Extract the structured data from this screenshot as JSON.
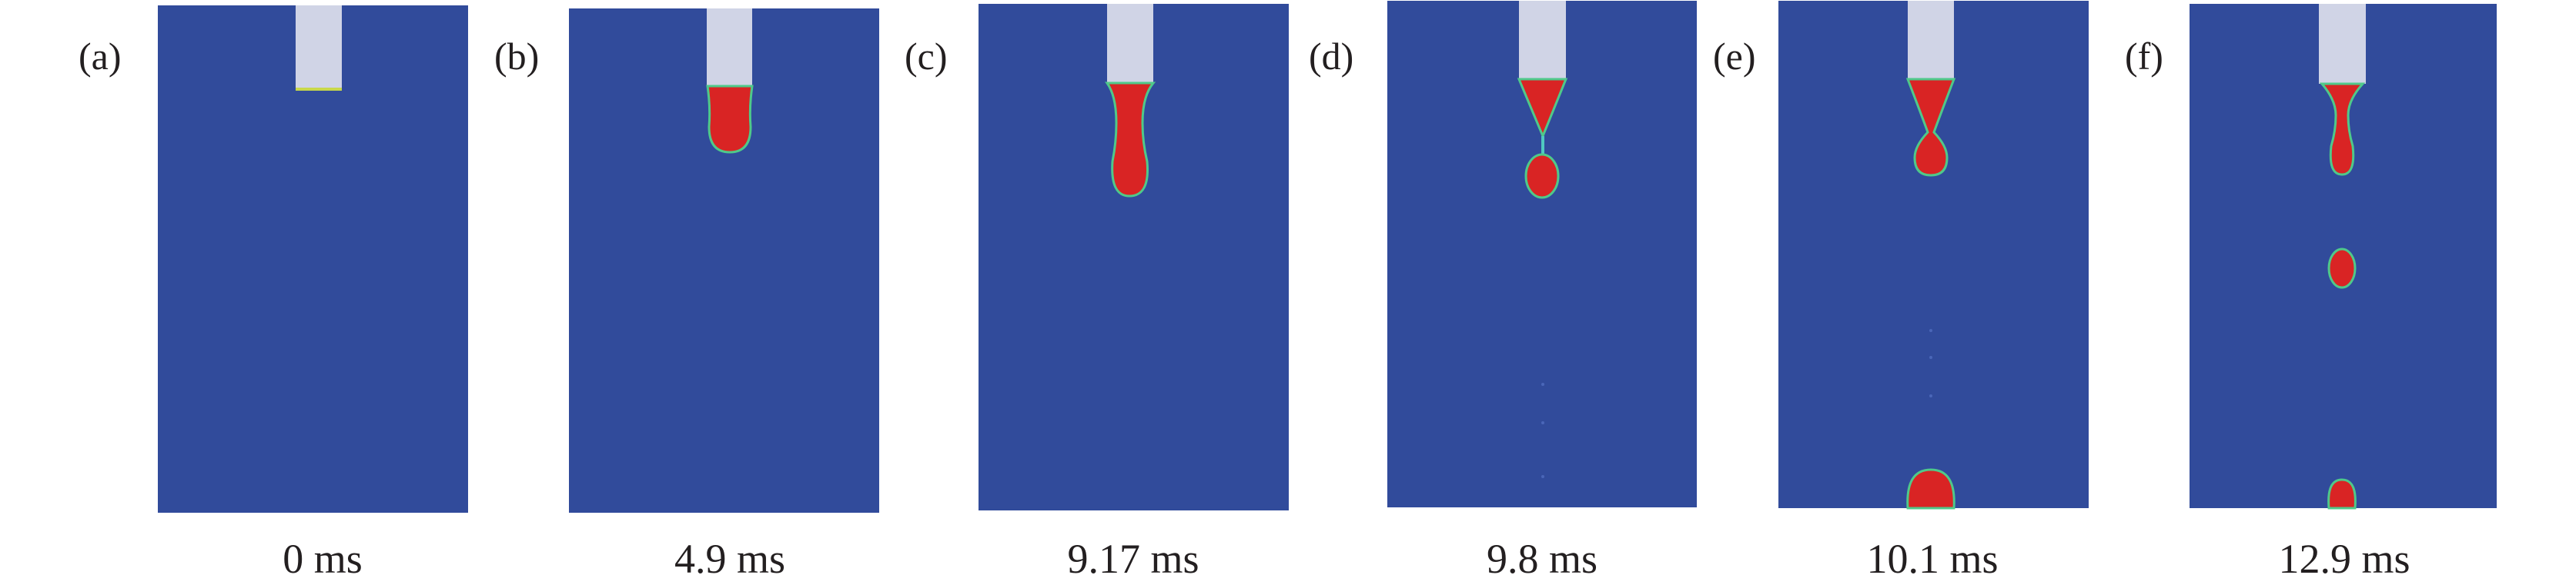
{
  "figure": {
    "panels": [
      {
        "label": "(a)",
        "time": "0 ms"
      },
      {
        "label": "(b)",
        "time": "4.9 ms"
      },
      {
        "label": "(c)",
        "time": "9.17 ms"
      },
      {
        "label": "(d)",
        "time": "9.8 ms"
      },
      {
        "label": "(e)",
        "time": "10.1 ms"
      },
      {
        "label": "(f)",
        "time": "12.9 ms"
      }
    ],
    "colors": {
      "background_phase": "#314b9b",
      "droplet_phase": "#d92424",
      "interface": "#4fc98a",
      "nozzle": "#d0d4e6"
    }
  }
}
